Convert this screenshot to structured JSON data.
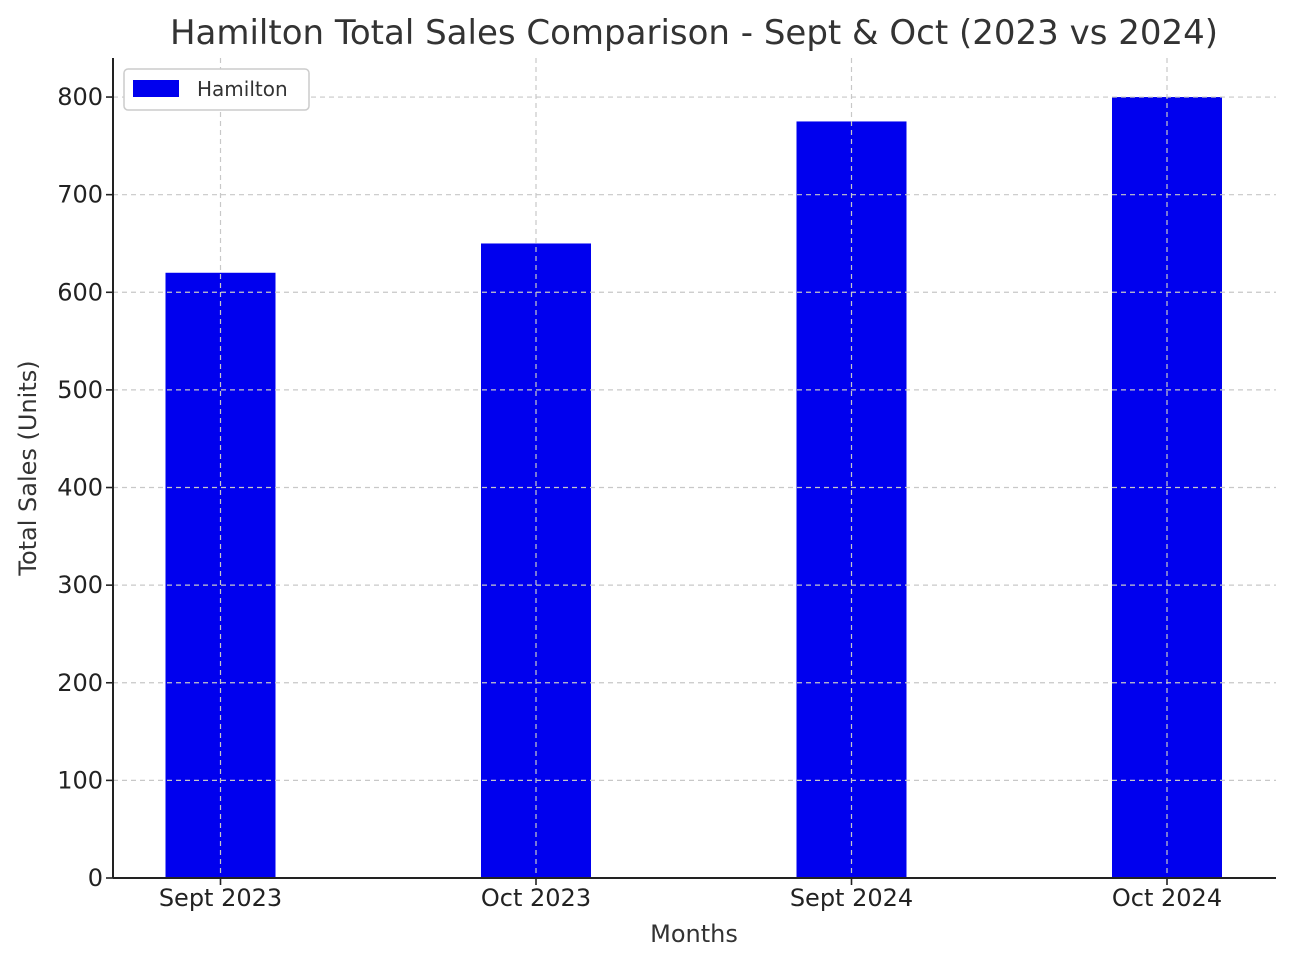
{
  "chart_data": {
    "type": "bar",
    "title": "Hamilton Total Sales Comparison - Sept & Oct (2023 vs 2024)",
    "xlabel": "Months",
    "ylabel": "Total Sales (Units)",
    "categories": [
      "Sept 2023",
      "Oct 2023",
      "Sept 2024",
      "Oct 2024"
    ],
    "series": [
      {
        "name": "Hamilton",
        "values": [
          620,
          650,
          775,
          800
        ],
        "color": "#0000ee"
      }
    ],
    "ylim": [
      0,
      840
    ],
    "yticks": [
      0,
      100,
      200,
      300,
      400,
      500,
      600,
      700,
      800
    ],
    "grid": true,
    "legend": "top-left"
  }
}
